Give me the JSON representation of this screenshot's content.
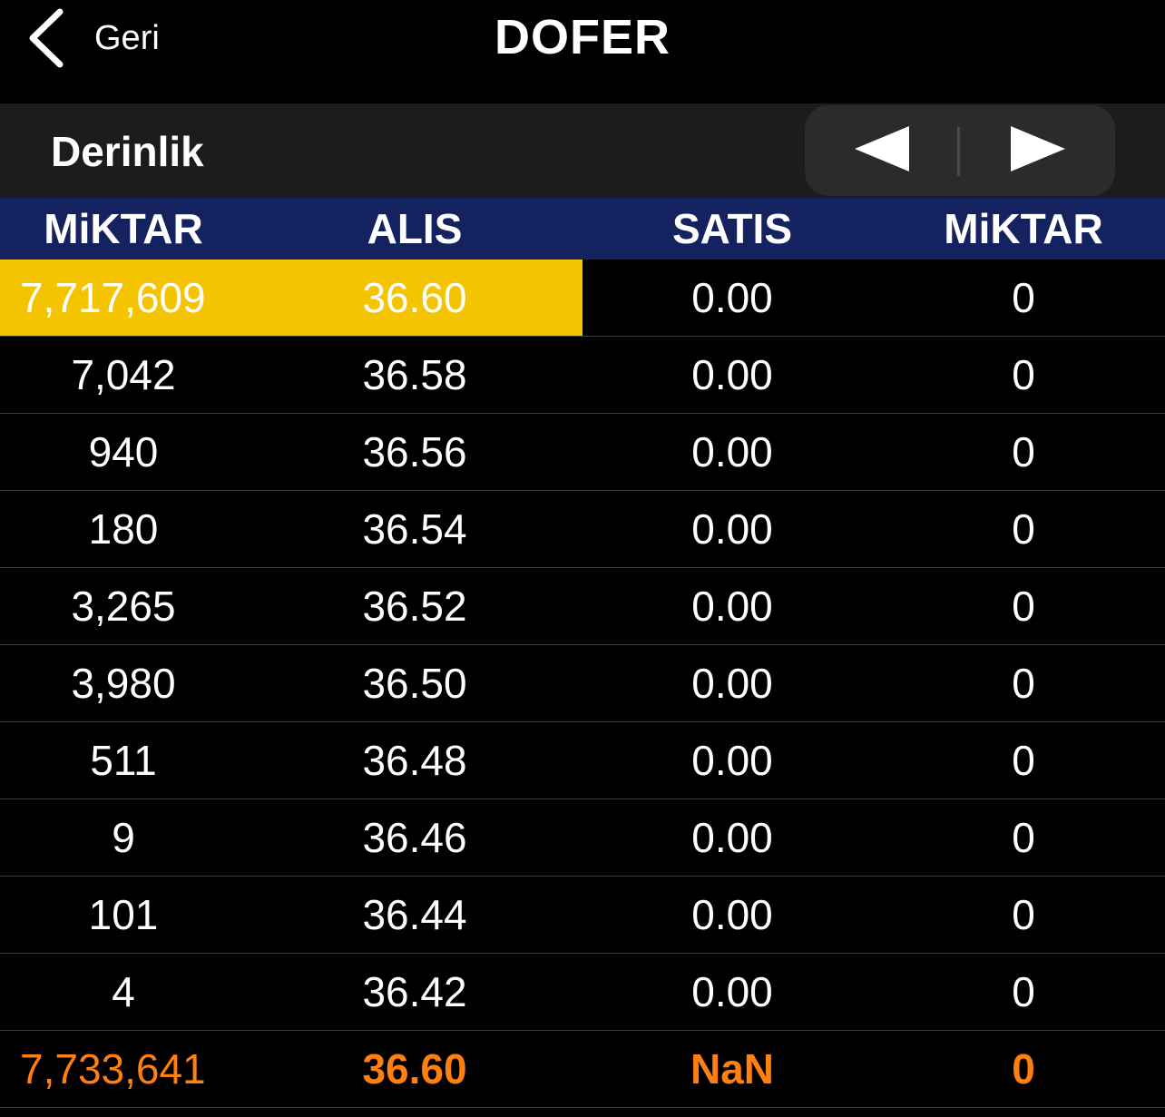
{
  "nav": {
    "back_label": "Geri",
    "title": "DOFER"
  },
  "section": {
    "title": "Derinlik",
    "prev_icon": "triangle-left-icon",
    "next_icon": "triangle-right-icon"
  },
  "table": {
    "headers": [
      "MiKTAR",
      "ALIS",
      "SATIS",
      "MiKTAR"
    ],
    "rows": [
      [
        "7,717,609",
        "36.60",
        "0.00",
        "0"
      ],
      [
        "7,042",
        "36.58",
        "0.00",
        "0"
      ],
      [
        "940",
        "36.56",
        "0.00",
        "0"
      ],
      [
        "180",
        "36.54",
        "0.00",
        "0"
      ],
      [
        "3,265",
        "36.52",
        "0.00",
        "0"
      ],
      [
        "3,980",
        "36.50",
        "0.00",
        "0"
      ],
      [
        "511",
        "36.48",
        "0.00",
        "0"
      ],
      [
        "9",
        "36.46",
        "0.00",
        "0"
      ],
      [
        "101",
        "36.44",
        "0.00",
        "0"
      ],
      [
        "4",
        "36.42",
        "0.00",
        "0"
      ]
    ],
    "total": [
      "7,733,641",
      "36.60",
      "NaN",
      "0"
    ]
  },
  "colors": {
    "background": "#000000",
    "header_bg": "#14225f",
    "section_bg": "#1c1c1c",
    "highlight": "#f5c400",
    "total_text": "#ff7f11"
  }
}
